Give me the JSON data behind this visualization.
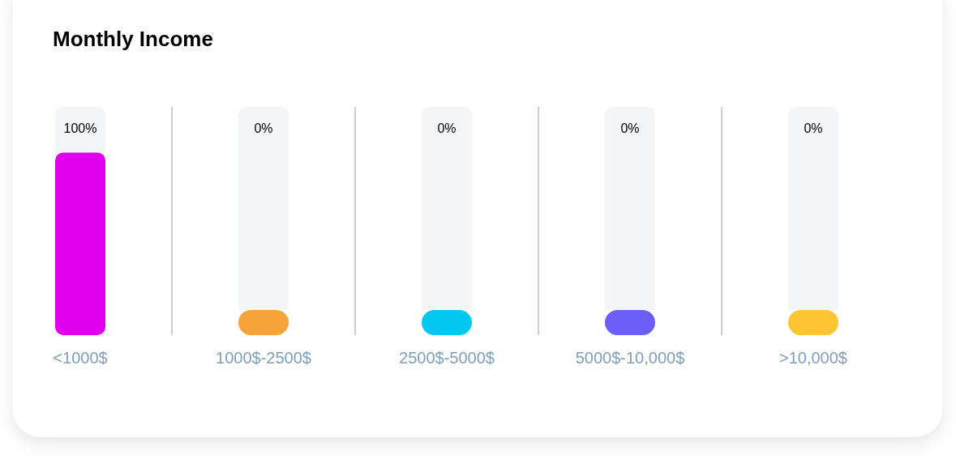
{
  "chart_data": {
    "type": "bar",
    "title": "Monthly Income",
    "categories": [
      "<1000$",
      "1000$-2500$",
      "2500$-5000$",
      "5000$-10,000$",
      ">10,000$"
    ],
    "values": [
      100,
      0,
      0,
      0,
      0
    ],
    "value_labels": [
      "100%",
      "0%",
      "0%",
      "0%",
      "0%"
    ],
    "colors": [
      "#e000ee",
      "#f8a23c",
      "#00c8f0",
      "#6c5ef8",
      "#fcc531"
    ],
    "grid": "x",
    "tick_labels": "x"
  }
}
